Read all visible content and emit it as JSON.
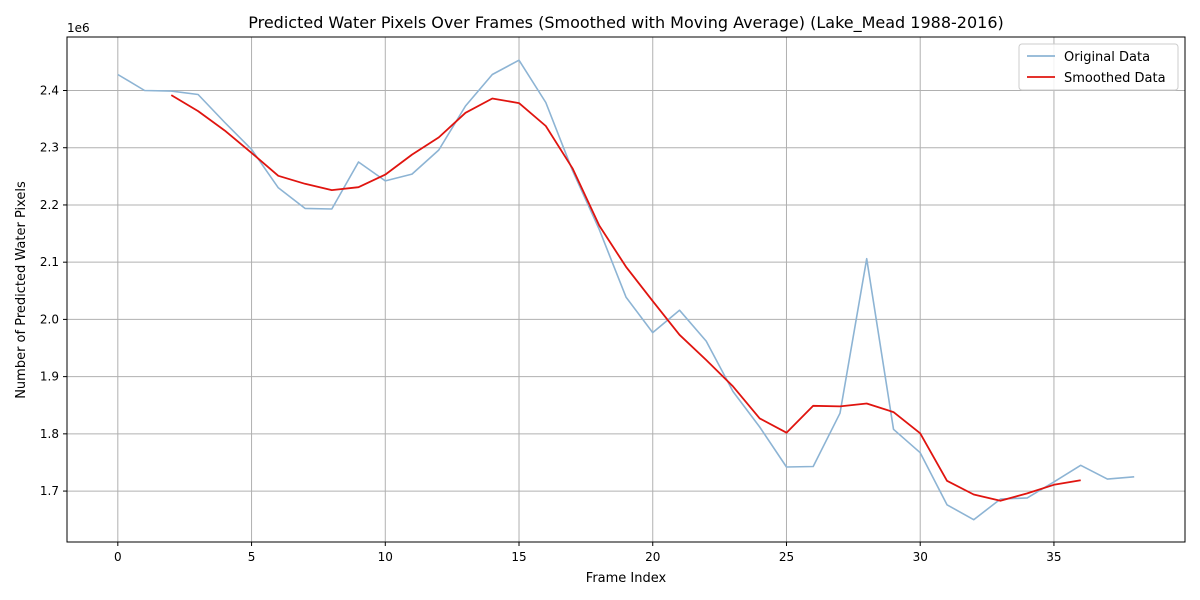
{
  "chart_data": {
    "type": "line",
    "title": "Predicted Water Pixels Over Frames (Smoothed with Moving Average) (Lake_Mead 1988-2016)",
    "xlabel": "Frame Index",
    "ylabel": "Number of Predicted Water Pixels",
    "y_offset_label": "1e6",
    "xlim": [
      -1.9,
      39.9
    ],
    "ylim": [
      1.611,
      2.4935
    ],
    "x_ticks": [
      0,
      5,
      10,
      15,
      20,
      25,
      30,
      35
    ],
    "x_tick_labels": [
      "0",
      "5",
      "10",
      "15",
      "20",
      "25",
      "30",
      "35"
    ],
    "y_ticks": [
      1.7,
      1.8,
      1.9,
      2.0,
      2.1,
      2.2,
      2.3,
      2.4
    ],
    "y_tick_labels": [
      "1.7",
      "1.8",
      "1.9",
      "2.0",
      "2.1",
      "2.2",
      "2.3",
      "2.4"
    ],
    "grid": true,
    "legend_position": "top-right",
    "series": [
      {
        "name": "Original Data",
        "color": "#8db4d4",
        "x": [
          0,
          1,
          2,
          3,
          4,
          5,
          6,
          7,
          8,
          9,
          10,
          11,
          12,
          13,
          14,
          15,
          16,
          17,
          18,
          19,
          20,
          21,
          22,
          23,
          24,
          25,
          26,
          27,
          28,
          29,
          30,
          31,
          32,
          33,
          34,
          35,
          36,
          37,
          38
        ],
        "y": [
          2.428,
          2.4,
          2.399,
          2.393,
          2.344,
          2.297,
          2.23,
          2.194,
          2.193,
          2.275,
          2.242,
          2.254,
          2.296,
          2.373,
          2.428,
          2.453,
          2.379,
          2.26,
          2.157,
          2.039,
          1.977,
          2.016,
          1.962,
          1.874,
          1.812,
          1.742,
          1.743,
          1.836,
          2.106,
          1.808,
          1.767,
          1.676,
          1.65,
          1.686,
          1.688,
          1.716,
          1.745,
          1.721,
          1.725
        ]
      },
      {
        "name": "Smoothed Data",
        "color": "#e0140f",
        "x": [
          2,
          3,
          4,
          5,
          6,
          7,
          8,
          9,
          10,
          11,
          12,
          13,
          14,
          15,
          16,
          17,
          18,
          19,
          20,
          21,
          22,
          23,
          24,
          25,
          26,
          27,
          28,
          29,
          30,
          31,
          32,
          33,
          34,
          35,
          36
        ],
        "y": [
          2.392,
          2.364,
          2.33,
          2.291,
          2.251,
          2.237,
          2.226,
          2.231,
          2.253,
          2.288,
          2.318,
          2.361,
          2.386,
          2.378,
          2.338,
          2.264,
          2.164,
          2.092,
          2.032,
          1.973,
          1.929,
          1.883,
          1.827,
          1.802,
          1.849,
          1.848,
          1.853,
          1.838,
          1.801,
          1.718,
          1.694,
          1.683,
          1.696,
          1.711,
          1.719
        ]
      }
    ]
  }
}
